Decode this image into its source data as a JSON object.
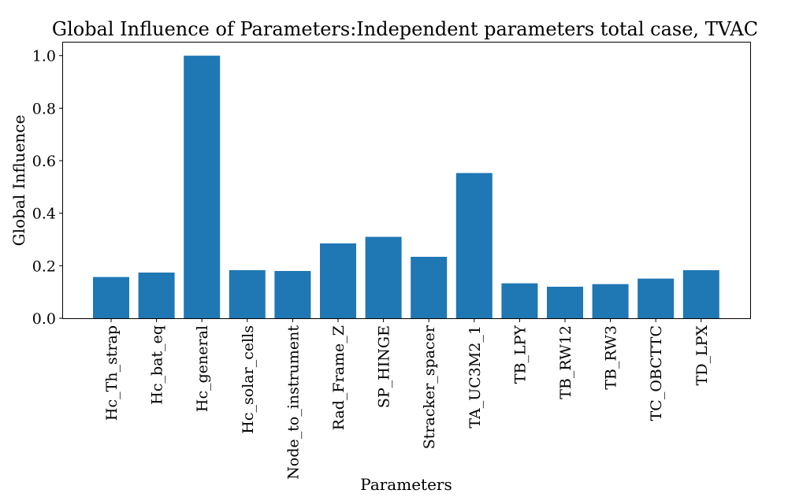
{
  "chart_data": {
    "type": "bar",
    "title": "Global Influence of Parameters:Independent parameters total case, TVAC",
    "xlabel": "Parameters",
    "ylabel": "Global Influence",
    "categories": [
      "Hc_Th_strap",
      "Hc_bat_eq",
      "Hc_general",
      "Hc_solar_cells",
      "Node_to_instrument",
      "Rad_Frame_Z",
      "SP_HINGE",
      "Stracker_spacer",
      "TA_UC3M2_1",
      "TB_LPY",
      "TB_RW12",
      "TB_RW3",
      "TC_OBCTTC",
      "TD_LPX"
    ],
    "values": [
      0.157,
      0.174,
      1.0,
      0.183,
      0.18,
      0.285,
      0.31,
      0.234,
      0.553,
      0.133,
      0.12,
      0.13,
      0.151,
      0.183
    ],
    "ylim": [
      0,
      1.05
    ],
    "yticks": [
      "0.0",
      "0.2",
      "0.4",
      "0.6",
      "0.8",
      "1.0"
    ],
    "grid": false,
    "bar_color": "#1f77b4"
  }
}
